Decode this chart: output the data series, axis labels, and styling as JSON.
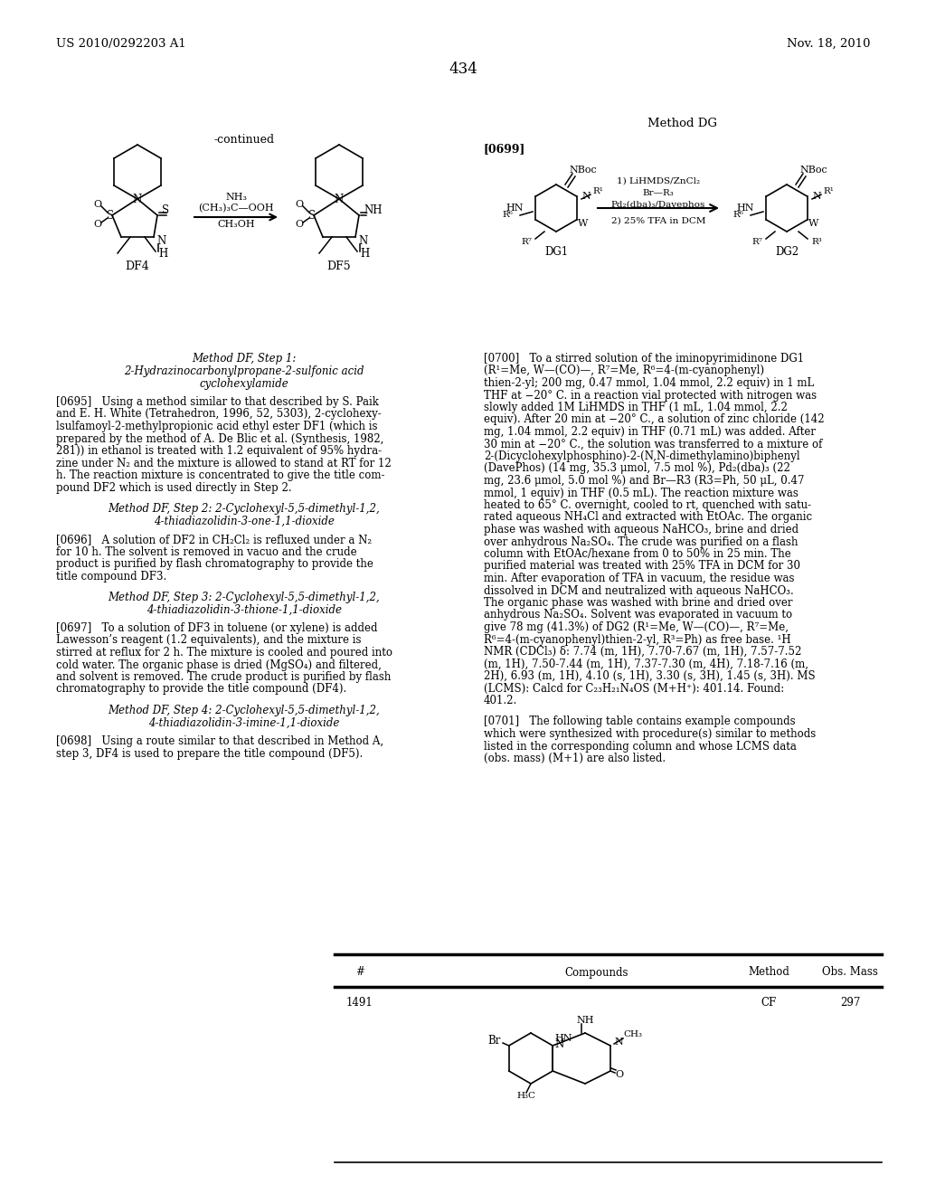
{
  "page_number": "434",
  "header_left": "US 2010/0292203 A1",
  "header_right": "Nov. 18, 2010",
  "background_color": "#ffffff",
  "continued_label": "-continued",
  "method_dg_label": "Method DG",
  "para_0699_tag": "[0699]",
  "arrow_reagent1": "NH₃",
  "arrow_reagent2": "(CH₃)₃C—OOH",
  "arrow_reagent3": "CH₃OH",
  "dg_reagent1": "1) LiHMDS/ZnCl₂",
  "dg_reagent2": "Br—R₃",
  "dg_reagent3": "Pd₂(dba)₃/Davephos",
  "dg_reagent4": "2) 25% TFA in DCM",
  "method_df_step1_line1": "Method DF, Step 1:",
  "method_df_step1_line2": "2-Hydrazinocarbonylpropane-2-sulfonic acid",
  "method_df_step1_line3": "cyclohexylamide",
  "method_df_step2_line1": "Method DF, Step 2: 2-Cyclohexyl-5,5-dimethyl-1,2,",
  "method_df_step2_line2": "4-thiadiazolidin-3-one-1,1-dioxide",
  "method_df_step3_line1": "Method DF, Step 3: 2-Cyclohexyl-5,5-dimethyl-1,2,",
  "method_df_step3_line2": "4-thiadiazolidin-3-thione-1,1-dioxide",
  "method_df_step4_line1": "Method DF, Step 4: 2-Cyclohexyl-5,5-dimethyl-1,2,",
  "method_df_step4_line2": "4-thiadiazolidin-3-imine-1,1-dioxide",
  "lines_0695": [
    "[0695]   Using a method similar to that described by S. Paik",
    "and E. H. White (Tetrahedron, 1996, 52, 5303), 2-cyclohexy-",
    "lsulfamoyl-2-methylpropionic acid ethyl ester DF1 (which is",
    "prepared by the method of A. De Blic et al. (Synthesis, 1982,",
    "281)) in ethanol is treated with 1.2 equivalent of 95% hydra-",
    "zine under N₂ and the mixture is allowed to stand at RT for 12",
    "h. The reaction mixture is concentrated to give the title com-",
    "pound DF2 which is used directly in Step 2."
  ],
  "lines_0696": [
    "[0696]   A solution of DF2 in CH₂Cl₂ is refluxed under a N₂",
    "for 10 h. The solvent is removed in vacuo and the crude",
    "product is purified by flash chromatography to provide the",
    "title compound DF3."
  ],
  "lines_0697": [
    "[0697]   To a solution of DF3 in toluene (or xylene) is added",
    "Lawesson’s reagent (1.2 equivalents), and the mixture is",
    "stirred at reflux for 2 h. The mixture is cooled and poured into",
    "cold water. The organic phase is dried (MgSO₄) and filtered,",
    "and solvent is removed. The crude product is purified by flash",
    "chromatography to provide the title compound (DF4)."
  ],
  "lines_0698": [
    "[0698]   Using a route similar to that described in Method A,",
    "step 3, DF4 is used to prepare the title compound (DF5)."
  ],
  "lines_0700": [
    "[0700]   To a stirred solution of the iminopyrimidinone DG1",
    "(R¹=Me, W—(CO)—, R⁷=Me, R⁶=4-(m-cyanophenyl)",
    "thien-2-yl; 200 mg, 0.47 mmol, 1.04 mmol, 2.2 equiv) in 1 mL",
    "THF at −20° C. in a reaction vial protected with nitrogen was",
    "slowly added 1M LiHMDS in THF (1 mL, 1.04 mmol, 2.2",
    "equiv). After 20 min at −20° C., a solution of zinc chloride (142",
    "mg, 1.04 mmol, 2.2 equiv) in THF (0.71 mL) was added. After",
    "30 min at −20° C., the solution was transferred to a mixture of",
    "2-(Dicyclohexylphosphino)-2-(N,N-dimethylamino)biphenyl",
    "(DavePhos) (14 mg, 35.3 μmol, 7.5 mol %), Pd₂(dba)₃ (22",
    "mg, 23.6 μmol, 5.0 mol %) and Br—R3 (R3=Ph, 50 μL, 0.47",
    "mmol, 1 equiv) in THF (0.5 mL). The reaction mixture was",
    "heated to 65° C. overnight, cooled to rt, quenched with satu-",
    "rated aqueous NH₄Cl and extracted with EtOAc. The organic",
    "phase was washed with aqueous NaHCO₃, brine and dried",
    "over anhydrous Na₂SO₄. The crude was purified on a flash",
    "column with EtOAc/hexane from 0 to 50% in 25 min. The",
    "purified material was treated with 25% TFA in DCM for 30",
    "min. After evaporation of TFA in vacuum, the residue was",
    "dissolved in DCM and neutralized with aqueous NaHCO₃.",
    "The organic phase was washed with brine and dried over",
    "anhydrous Na₂SO₄. Solvent was evaporated in vacuum to",
    "give 78 mg (41.3%) of DG2 (R¹=Me, W—(CO)—, R⁷=Me,",
    "R⁶=4-(m-cyanophenyl)thien-2-yl, R³=Ph) as free base. ¹H",
    "NMR (CDCl₃) δ: 7.74 (m, 1H), 7.70-7.67 (m, 1H), 7.57-7.52",
    "(m, 1H), 7.50-7.44 (m, 1H), 7.37-7.30 (m, 4H), 7.18-7.16 (m,",
    "2H), 6.93 (m, 1H), 4.10 (s, 1H), 3.30 (s, 3H), 1.45 (s, 3H). MS",
    "(LCMS): Calcd for C₂₃H₂₁N₄OS (M+H⁺): 401.14. Found:",
    "401.2."
  ],
  "lines_0701": [
    "[0701]   The following table contains example compounds",
    "which were synthesized with procedure(s) similar to methods",
    "listed in the corresponding column and whose LCMS data",
    "(obs. mass) (M+1) are also listed."
  ],
  "table_col1": "#",
  "table_col2": "Compounds",
  "table_col3": "Method",
  "table_col4": "Obs. Mass",
  "table_row1_num": "1491",
  "table_row1_method": "CF",
  "table_row1_mass": "297"
}
